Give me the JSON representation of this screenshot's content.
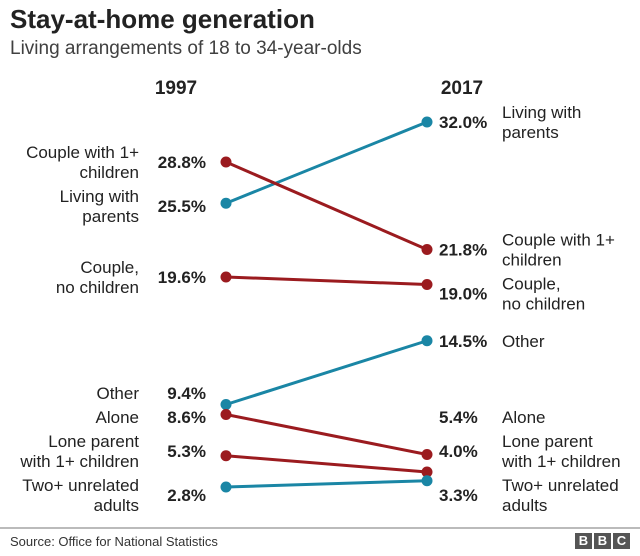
{
  "title": "Stay-at-home generation",
  "subtitle": "Living arrangements of 18 to 34-year-olds",
  "source": "Source: Office for National Statistics",
  "logo": "BBC",
  "colors": {
    "increase": "#1a86a5",
    "decrease": "#9b1b1f"
  },
  "chart_data": {
    "type": "slope",
    "x": [
      "1997",
      "2017"
    ],
    "unit": "%",
    "series": [
      {
        "name": "Living with parents",
        "values": [
          25.5,
          32.0
        ]
      },
      {
        "name": "Couple with 1+ children",
        "values": [
          28.8,
          21.8
        ]
      },
      {
        "name": "Couple, no children",
        "values": [
          19.6,
          19.0
        ]
      },
      {
        "name": "Other",
        "values": [
          9.4,
          14.5
        ]
      },
      {
        "name": "Alone",
        "values": [
          8.6,
          5.4
        ]
      },
      {
        "name": "Lone parent with 1+ children",
        "values": [
          5.3,
          4.0
        ]
      },
      {
        "name": "Two+ unrelated adults",
        "values": [
          2.8,
          3.3
        ]
      }
    ],
    "left_labels": [
      [
        "Living with",
        "parents"
      ],
      [
        "Couple with 1+",
        "children"
      ],
      [
        "Couple,",
        "no children"
      ],
      [
        "Other"
      ],
      [
        "Alone"
      ],
      [
        "Lone parent",
        "with 1+ children"
      ],
      [
        "Two+ unrelated",
        "adults"
      ]
    ],
    "right_labels": [
      [
        "Living with",
        "parents"
      ],
      [
        "Couple with 1+",
        "children"
      ],
      [
        "Couple,",
        "no children"
      ],
      [
        "Other"
      ],
      [
        "Alone"
      ],
      [
        "Lone parent",
        "with 1+ children"
      ],
      [
        "Two+ unrelated",
        "adults"
      ]
    ],
    "value_labels": [
      [
        "25.5%",
        "32.0%"
      ],
      [
        "28.8%",
        "21.8%"
      ],
      [
        "19.6%",
        "19.0%"
      ],
      [
        "9.4%",
        "14.5%"
      ],
      [
        "8.6%",
        "5.4%"
      ],
      [
        "5.3%",
        "4.0%"
      ],
      [
        "2.8%",
        "3.3%"
      ]
    ]
  }
}
